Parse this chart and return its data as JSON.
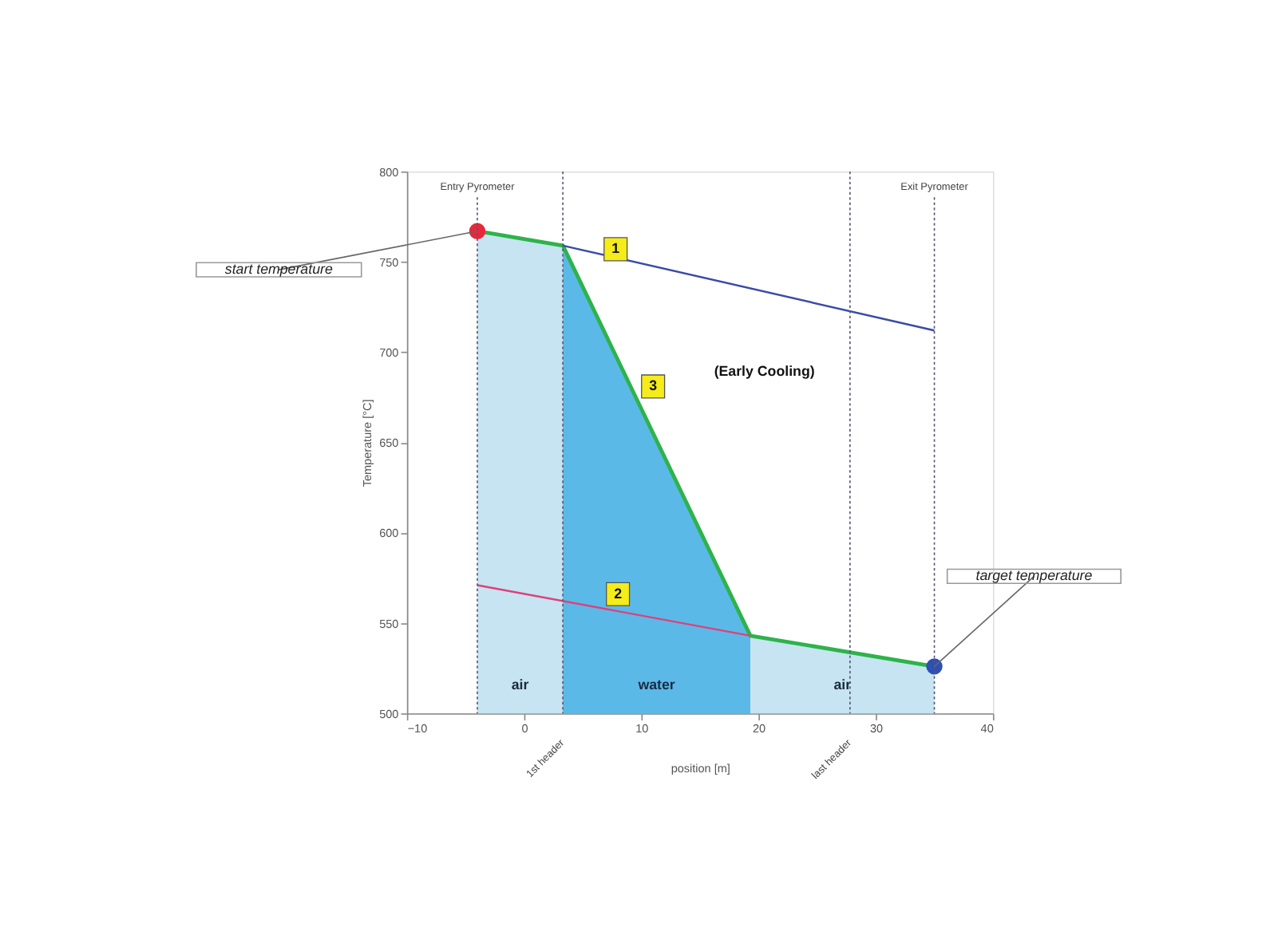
{
  "chart_data": {
    "type": "line",
    "xlabel": "position [m]",
    "ylabel": "Temperature [°C]",
    "xlim": [
      -10,
      40
    ],
    "xticks": [
      -10,
      0,
      10,
      20,
      30,
      40
    ],
    "ylim": [
      500,
      800
    ],
    "yticks": [
      500,
      550,
      600,
      650,
      700,
      750,
      800
    ],
    "grid": false,
    "series": [
      {
        "name": "air",
        "type": "area",
        "color": "#c6e4f1",
        "x": [
          -4,
          3.3
        ],
        "values": [
          767,
          759
        ]
      },
      {
        "name": "water",
        "type": "area",
        "color": "#5bb9e8",
        "x": [
          3.3,
          19.3
        ],
        "values": [
          759,
          543
        ]
      },
      {
        "name": "air",
        "type": "area",
        "color": "#c6e4f1",
        "x": [
          19.3,
          35
        ],
        "values": [
          543,
          526
        ]
      },
      {
        "color": "#2eb34a",
        "x": [
          -4,
          3.3,
          19.3,
          35
        ],
        "values": [
          767,
          759,
          543,
          526
        ]
      },
      {
        "color": "#3a4aa8",
        "x": [
          3.3,
          35
        ],
        "values": [
          759,
          712
        ]
      },
      {
        "color": "#e0407a",
        "x": [
          19.3,
          -4
        ],
        "values": [
          543,
          571
        ]
      },
      {
        "type": "scatter",
        "color": "#e8283a",
        "x": [
          -4
        ],
        "values": [
          767
        ]
      },
      {
        "type": "scatter",
        "color": "#2f4fb5",
        "x": [
          35
        ],
        "values": [
          526
        ]
      }
    ],
    "ref_lines": [
      {
        "axis": "x",
        "value": -4,
        "label": "Entry Pyrometer",
        "color": "#555577",
        "line_style": "dotted"
      },
      {
        "axis": "x",
        "value": 35,
        "label": "Exit Pyrometer",
        "color": "#555577",
        "line_style": "dotted"
      },
      {
        "axis": "x",
        "value": 3.3,
        "label": "1st header",
        "color": "#555577",
        "line_style": "dotted"
      },
      {
        "axis": "x",
        "value": 27.8,
        "label": "last header",
        "color": "#555577",
        "line_style": "dotted"
      }
    ],
    "annotations": [
      {
        "text": "start temperature",
        "x": -4,
        "y": 767
      },
      {
        "text": "target temperature",
        "x": 35,
        "y": 526
      },
      {
        "text": "1",
        "x": 7.8,
        "y": 757
      },
      {
        "text": "2",
        "x": 8.0,
        "y": 566
      },
      {
        "text": "3",
        "x": 11.0,
        "y": 681
      },
      "(Early Cooling)"
    ]
  }
}
